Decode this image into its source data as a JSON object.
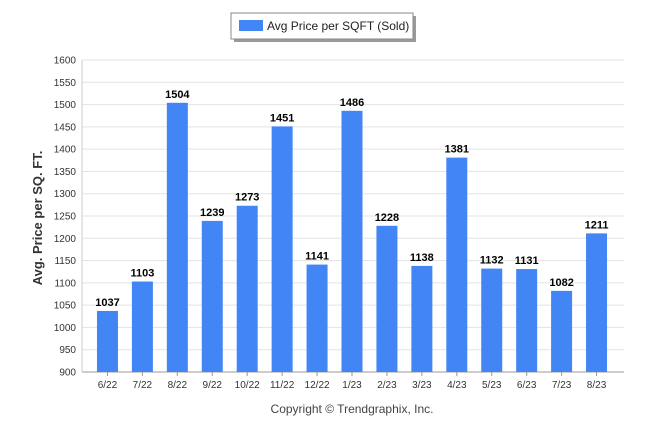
{
  "chart_data": {
    "type": "bar",
    "ylabel": "Avg. Price per SQ. FT.",
    "ylim": [
      900,
      1600
    ],
    "ytick_step": 50,
    "grid": true,
    "legend_position": "top-center",
    "bar_color": "#4285F4",
    "categories": [
      "6/22",
      "7/22",
      "8/22",
      "9/22",
      "10/22",
      "11/22",
      "12/22",
      "1/23",
      "2/23",
      "3/23",
      "4/23",
      "5/23",
      "6/23",
      "7/23",
      "8/23"
    ],
    "series": [
      {
        "name": "Avg Price per SQFT (Sold)",
        "values": [
          1037,
          1103,
          1504,
          1239,
          1273,
          1451,
          1141,
          1486,
          1228,
          1138,
          1381,
          1132,
          1131,
          1082,
          1211
        ]
      }
    ]
  },
  "legend": {
    "label": "Avg Price per SQFT (Sold)"
  },
  "footer": {
    "copyright": "Copyright © Trendgraphix, Inc."
  }
}
